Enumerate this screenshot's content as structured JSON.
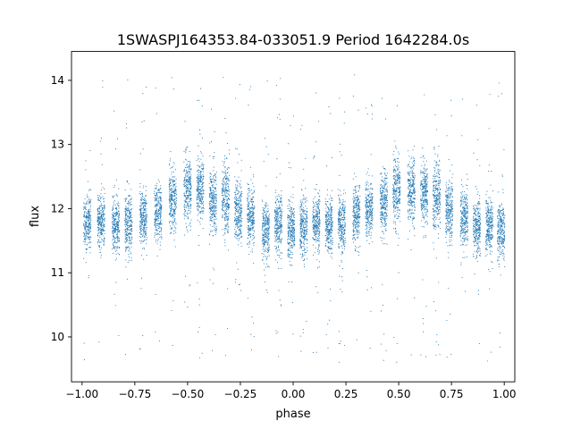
{
  "chart_data": {
    "type": "scatter",
    "title": "1SWASPJ164353.84-033051.9 Period 1642284.0s",
    "xlabel": "phase",
    "ylabel": "flux",
    "xlim": [
      -1.05,
      1.05
    ],
    "ylim": [
      9.3,
      14.45
    ],
    "xticks": [
      -1.0,
      -0.75,
      -0.5,
      -0.25,
      0.0,
      0.25,
      0.5,
      0.75,
      1.0
    ],
    "xtick_labels": [
      "−1.00",
      "−0.75",
      "−0.50",
      "−0.25",
      "0.00",
      "0.25",
      "0.50",
      "0.75",
      "1.00"
    ],
    "yticks": [
      10,
      11,
      12,
      13,
      14
    ],
    "ytick_labels": [
      "10",
      "11",
      "12",
      "13",
      "14"
    ],
    "grid": false,
    "marker_color": "#1f77b4",
    "clusters": [
      {
        "x": -0.975,
        "y": 11.8,
        "spread": 0.38
      },
      {
        "x": -0.91,
        "y": 11.8,
        "spread": 0.38
      },
      {
        "x": -0.84,
        "y": 11.75,
        "spread": 0.4
      },
      {
        "x": -0.78,
        "y": 11.75,
        "spread": 0.4
      },
      {
        "x": -0.71,
        "y": 11.85,
        "spread": 0.4
      },
      {
        "x": -0.64,
        "y": 11.95,
        "spread": 0.4
      },
      {
        "x": -0.57,
        "y": 12.15,
        "spread": 0.42
      },
      {
        "x": -0.5,
        "y": 12.3,
        "spread": 0.45
      },
      {
        "x": -0.44,
        "y": 12.3,
        "spread": 0.45
      },
      {
        "x": -0.38,
        "y": 12.1,
        "spread": 0.45
      },
      {
        "x": -0.32,
        "y": 12.15,
        "spread": 0.5
      },
      {
        "x": -0.26,
        "y": 11.95,
        "spread": 0.45
      },
      {
        "x": -0.2,
        "y": 11.85,
        "spread": 0.42
      },
      {
        "x": -0.13,
        "y": 11.65,
        "spread": 0.4
      },
      {
        "x": -0.07,
        "y": 11.75,
        "spread": 0.4
      },
      {
        "x": -0.01,
        "y": 11.65,
        "spread": 0.42
      },
      {
        "x": 0.05,
        "y": 11.7,
        "spread": 0.4
      },
      {
        "x": 0.11,
        "y": 11.8,
        "spread": 0.4
      },
      {
        "x": 0.17,
        "y": 11.7,
        "spread": 0.4
      },
      {
        "x": 0.23,
        "y": 11.75,
        "spread": 0.4
      },
      {
        "x": 0.3,
        "y": 11.9,
        "spread": 0.4
      },
      {
        "x": 0.36,
        "y": 12.0,
        "spread": 0.38
      },
      {
        "x": 0.43,
        "y": 12.1,
        "spread": 0.4
      },
      {
        "x": 0.49,
        "y": 12.3,
        "spread": 0.45
      },
      {
        "x": 0.56,
        "y": 12.3,
        "spread": 0.45
      },
      {
        "x": 0.62,
        "y": 12.25,
        "spread": 0.45
      },
      {
        "x": 0.68,
        "y": 12.2,
        "spread": 0.5
      },
      {
        "x": 0.74,
        "y": 11.95,
        "spread": 0.45
      },
      {
        "x": 0.81,
        "y": 11.85,
        "spread": 0.4
      },
      {
        "x": 0.87,
        "y": 11.7,
        "spread": 0.4
      },
      {
        "x": 0.93,
        "y": 11.75,
        "spread": 0.4
      },
      {
        "x": 0.985,
        "y": 11.65,
        "spread": 0.42
      }
    ],
    "points_per_cluster": 260,
    "outlier_count": 420,
    "outlier_range": [
      9.6,
      14.1
    ]
  }
}
